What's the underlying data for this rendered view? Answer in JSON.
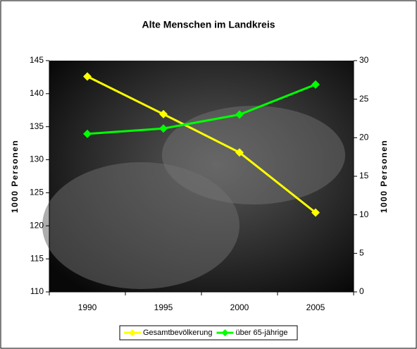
{
  "chart_data": {
    "type": "line",
    "title": "Alte Menschen im Landkreis",
    "y_label": "1000 Personen",
    "y2_label": "1000 Personen",
    "categories": [
      "1990",
      "1995",
      "2000",
      "2005"
    ],
    "series": [
      {
        "name": "Gesamtbevölkerung",
        "color": "#ffff00",
        "values": [
          142.6,
          136.9,
          131.1,
          122.0
        ]
      },
      {
        "name": "über 65-jährige",
        "color": "#00ff00",
        "axis": "y2",
        "values": [
          20.5,
          21.2,
          23.0,
          26.9
        ]
      }
    ],
    "ylim": [
      110,
      145
    ],
    "yticks": [
      110,
      115,
      120,
      125,
      130,
      135,
      140,
      145
    ],
    "y2lim": [
      0,
      30
    ],
    "y2ticks": [
      0,
      5,
      10,
      15,
      20,
      25,
      30
    ],
    "legend": "bottom"
  }
}
